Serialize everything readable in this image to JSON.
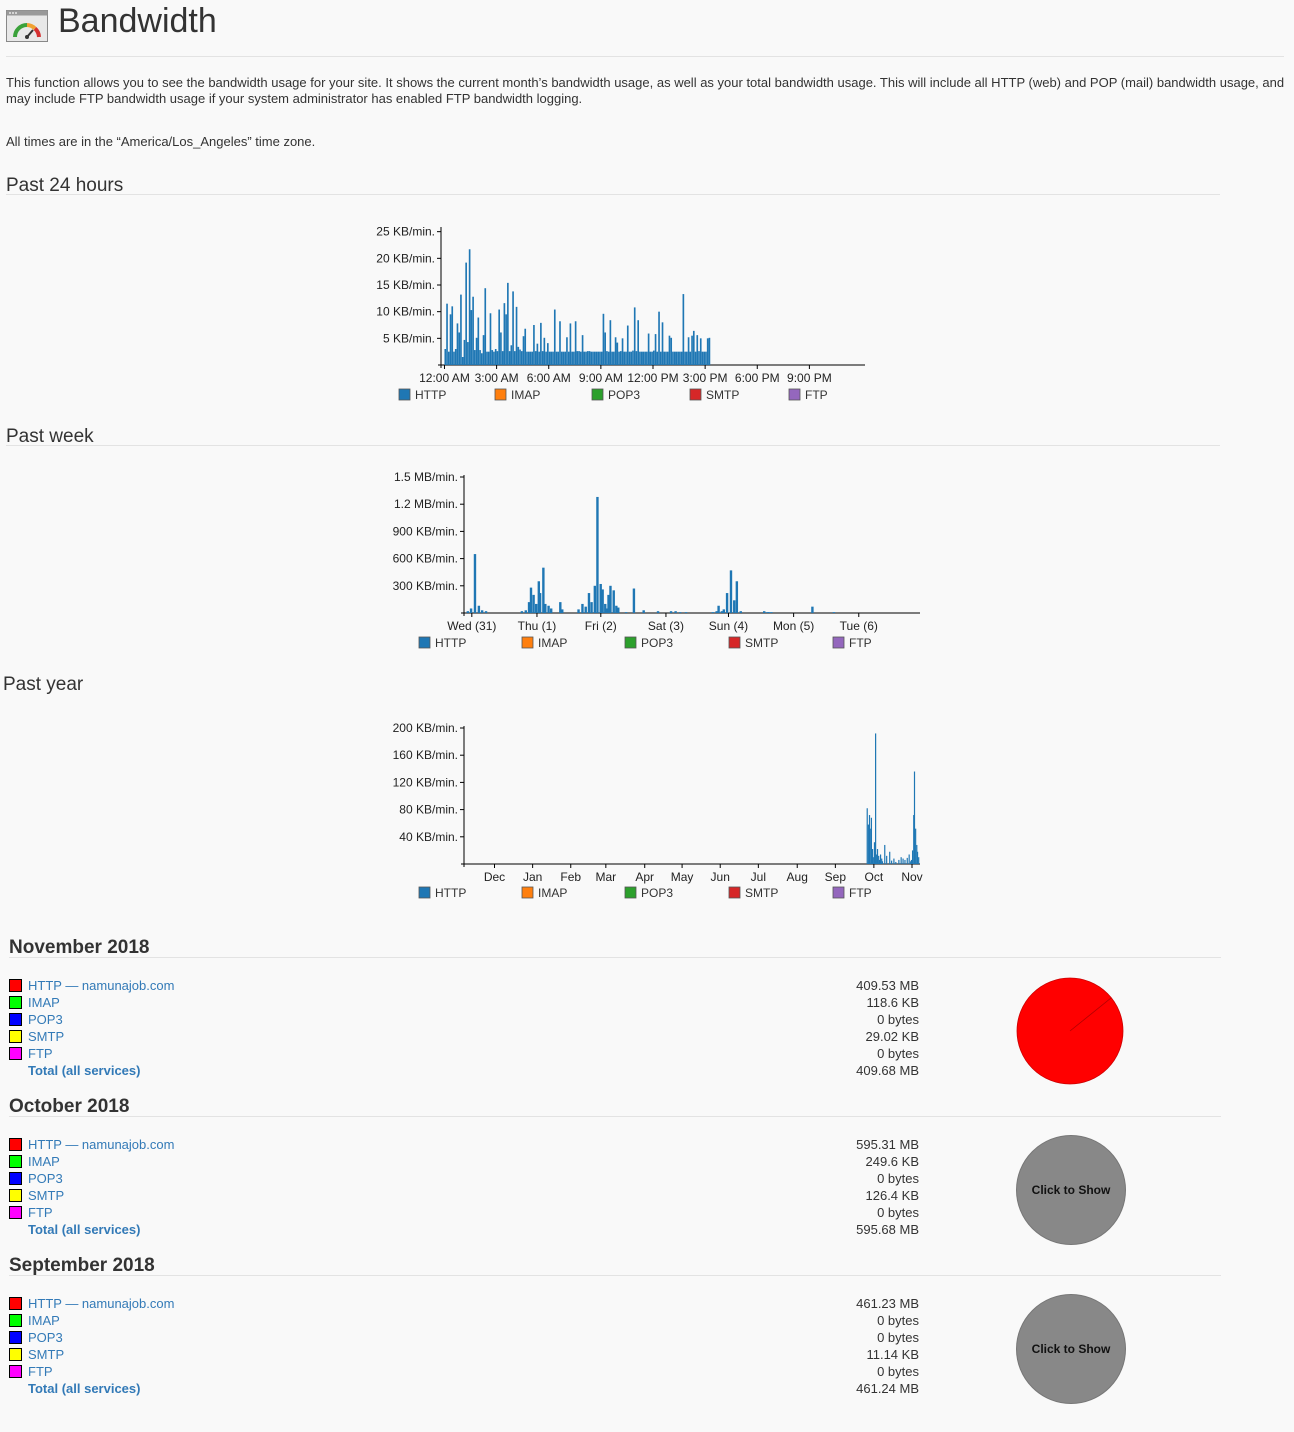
{
  "header": {
    "title": "Bandwidth",
    "description": "This function allows you to see the bandwidth usage for your site. It shows the current month’s bandwidth usage, as well as your total bandwidth usage. This will include all HTTP (web) and POP (mail) bandwidth usage, and may include FTP bandwidth usage if your system administrator has enabled FTP bandwidth logging.",
    "tz_prefix": "All times are in the “",
    "tz_name": "America/Los_Angeles",
    "tz_suffix": "” time zone."
  },
  "legend_colors": {
    "HTTP": "#1f77b4",
    "IMAP": "#ff7f0e",
    "POP3": "#2ca02c",
    "SMTP": "#d62728",
    "FTP": "#9467bd"
  },
  "sections": {
    "day": {
      "title": "Past 24 hours"
    },
    "week": {
      "title": "Past week"
    },
    "year": {
      "title": "Past year"
    }
  },
  "chart_data": [
    {
      "id": "day",
      "type": "bar",
      "title": "Past 24 hours",
      "ylabel": "",
      "xlabel": "",
      "ylim": [
        0,
        25.5
      ],
      "ytick_values": [
        5,
        10,
        15,
        20,
        25
      ],
      "ytick_labels": [
        "5 KB/min.",
        "10 KB/min.",
        "15 KB/min.",
        "20 KB/min.",
        "25 KB/min."
      ],
      "xlim": [
        -0.2,
        24.2
      ],
      "xtick_values": [
        0,
        3,
        6,
        9,
        12,
        15,
        18,
        21
      ],
      "xtick_labels": [
        "12:00 AM",
        "3:00 AM",
        "6:00 AM",
        "9:00 AM",
        "12:00 PM",
        "3:00 PM",
        "6:00 PM",
        "9:00 PM"
      ],
      "legend": [
        "HTTP",
        "IMAP",
        "POP3",
        "SMTP",
        "FTP"
      ],
      "series": [
        {
          "name": "HTTP",
          "x": [
            0.0,
            0.1,
            0.2,
            0.3,
            0.4,
            0.5,
            0.6,
            0.7,
            0.8,
            0.9,
            1.0,
            1.1,
            1.2,
            1.3,
            1.4,
            1.5,
            1.6,
            1.7,
            1.8,
            1.9,
            2.0,
            2.1,
            2.2,
            2.3,
            2.4,
            2.5,
            2.6,
            2.7,
            2.8,
            2.9,
            3.0,
            3.1,
            3.2,
            3.3,
            3.4,
            3.5,
            3.6,
            3.7,
            3.8,
            3.9,
            4.0,
            4.1,
            4.2,
            4.3,
            4.4,
            4.5,
            4.6,
            4.7,
            4.8,
            4.9,
            5.0,
            5.1,
            5.2,
            5.3,
            5.4,
            5.5,
            5.6,
            5.7,
            5.8,
            5.9,
            6.0,
            6.1,
            6.2,
            6.3,
            6.4,
            6.5,
            6.6,
            6.7,
            6.8,
            6.9,
            7.0,
            7.1,
            7.2,
            7.3,
            7.4,
            7.5,
            7.6,
            7.7,
            7.8,
            7.9,
            8.0,
            8.1,
            8.2,
            8.3,
            8.4,
            8.5,
            8.6,
            8.7,
            8.8,
            8.9,
            9.0,
            9.1,
            9.2,
            9.3,
            9.4,
            9.5,
            9.6,
            9.7,
            9.8,
            9.9,
            10.0,
            10.1,
            10.2,
            10.3,
            10.4,
            10.5,
            10.6,
            10.7,
            10.8,
            10.9,
            11.0,
            11.1,
            11.2,
            11.3,
            11.4,
            11.5,
            11.6,
            11.7,
            11.8,
            11.9,
            12.0,
            12.1,
            12.2,
            12.3,
            12.4,
            12.5,
            12.6,
            12.7,
            12.8,
            12.9,
            13.0,
            13.1,
            13.2,
            13.3,
            13.4,
            13.5,
            13.6,
            13.7,
            13.8,
            13.9,
            14.0,
            14.1,
            14.2,
            14.3,
            14.4,
            14.5,
            14.6,
            14.7,
            14.8,
            14.9,
            15.0,
            15.1,
            15.2
          ],
          "values": [
            3.0,
            11.5,
            2.5,
            9.5,
            11.0,
            2.5,
            3.0,
            7.8,
            6.1,
            13.2,
            1.5,
            4.7,
            19.2,
            4.3,
            21.7,
            10.3,
            12.8,
            2.8,
            5.1,
            8.9,
            2.8,
            2.2,
            5.6,
            14.4,
            2.5,
            2.5,
            9.7,
            2.8,
            2.5,
            3.0,
            2.6,
            10.4,
            6.1,
            2.6,
            11.6,
            9.5,
            15.4,
            2.6,
            3.7,
            13.8,
            2.6,
            10.9,
            3.4,
            2.9,
            2.6,
            5.4,
            6.8,
            2.5,
            2.5,
            2.5,
            2.5,
            7.5,
            2.6,
            4.0,
            2.5,
            7.9,
            2.6,
            5.1,
            2.5,
            4.1,
            2.5,
            2.5,
            2.5,
            10.4,
            2.5,
            2.5,
            8.2,
            2.5,
            2.5,
            2.5,
            5.2,
            2.5,
            7.8,
            2.5,
            2.5,
            8.2,
            2.6,
            2.6,
            2.5,
            5.6,
            2.5,
            2.5,
            2.6,
            2.6,
            2.5,
            2.5,
            2.5,
            2.5,
            2.5,
            2.5,
            2.5,
            9.6,
            6.1,
            2.6,
            2.5,
            8.4,
            2.5,
            2.5,
            5.2,
            4.2,
            2.5,
            2.6,
            5.0,
            2.5,
            2.5,
            7.4,
            2.5,
            2.5,
            2.7,
            10.8,
            2.6,
            8.4,
            2.5,
            2.5,
            2.5,
            2.5,
            2.5,
            5.9,
            2.5,
            2.5,
            2.7,
            5.8,
            2.5,
            10.0,
            2.5,
            8.0,
            2.5,
            2.5,
            2.5,
            5.5,
            5.1,
            2.5,
            2.5,
            2.5,
            2.5,
            2.5,
            2.5,
            13.3,
            2.5,
            2.5,
            5.2,
            2.5,
            5.5,
            6.4,
            2.5,
            5.6,
            2.6,
            5.0,
            2.5,
            2.5,
            2.5,
            5.0,
            5.1
          ]
        }
      ]
    },
    {
      "id": "week",
      "type": "bar",
      "title": "Past week",
      "ylabel": "",
      "xlabel": "",
      "ylim": [
        0,
        1.5
      ],
      "ytick_values": [
        0.3,
        0.6,
        0.9,
        1.2,
        1.5
      ],
      "ytick_labels": [
        "300 KB/min.",
        "600 KB/min.",
        "900 KB/min.",
        "1.2 MB/min.",
        "1.5 MB/min."
      ],
      "xlim": [
        -0.1,
        6.9
      ],
      "xtick_values": [
        0.02,
        1.02,
        2.0,
        3.0,
        3.96,
        4.96,
        5.96
      ],
      "xtick_labels": [
        "Wed (31)",
        "Thu (1)",
        "Fri (2)",
        "Sat (3)",
        "Sun (4)",
        "Mon (5)",
        "Tue (6)"
      ],
      "legend": [
        "HTTP",
        "IMAP",
        "POP3",
        "SMTP",
        "FTP"
      ],
      "series": [
        {
          "name": "HTTP",
          "x": [
            -0.06,
            -0.01,
            0.05,
            0.11,
            0.16,
            0.22,
            0.77,
            0.83,
            0.88,
            0.91,
            0.95,
            0.99,
            1.03,
            1.05,
            1.1,
            1.13,
            1.18,
            1.22,
            1.36,
            1.39,
            1.64,
            1.7,
            1.75,
            1.8,
            1.84,
            1.89,
            1.93,
            1.98,
            2.01,
            2.05,
            2.08,
            2.1,
            2.13,
            2.18,
            2.22,
            2.25,
            2.37,
            2.49,
            2.64,
            2.86,
            3.06,
            3.13,
            3.2,
            3.29,
            3.7,
            3.76,
            3.79,
            3.84,
            3.87,
            3.92,
            3.98,
            4.03,
            4.07,
            4.13,
            4.49,
            4.54,
            4.56,
            4.6,
            5.23,
            5.56
          ],
          "values": [
            0.02,
            0.05,
            0.65,
            0.08,
            0.03,
            0.02,
            0.02,
            0.03,
            0.12,
            0.28,
            0.2,
            0.1,
            0.35,
            0.22,
            0.5,
            0.1,
            0.08,
            0.05,
            0.12,
            0.04,
            0.04,
            0.1,
            0.07,
            0.22,
            0.12,
            0.3,
            1.28,
            0.32,
            0.26,
            0.1,
            0.05,
            0.2,
            0.3,
            0.25,
            0.08,
            0.06,
            0.01,
            0.27,
            0.03,
            0.02,
            0.02,
            0.02,
            0.01,
            0.01,
            0.01,
            0.02,
            0.08,
            0.02,
            0.04,
            0.22,
            0.47,
            0.14,
            0.35,
            0.02,
            0.02,
            0.01,
            0.01,
            0.01,
            0.07,
            0.01
          ]
        }
      ]
    },
    {
      "id": "year",
      "type": "bar",
      "title": "Past year",
      "ylabel": "",
      "xlabel": "",
      "ylim": [
        0,
        200
      ],
      "ytick_values": [
        40,
        80,
        120,
        160,
        200
      ],
      "ytick_labels": [
        "40 KB/min.",
        "80 KB/min.",
        "120 KB/min.",
        "160 KB/min.",
        "200 KB/min."
      ],
      "xlim": [
        0,
        11.96
      ],
      "xtick_values": [
        0.8,
        1.8,
        2.8,
        3.72,
        4.74,
        5.72,
        6.72,
        7.72,
        8.74,
        9.74,
        10.75,
        11.75
      ],
      "xtick_labels": [
        "Dec",
        "Jan",
        "Feb",
        "Mar",
        "Apr",
        "May",
        "Jun",
        "Jul",
        "Aug",
        "Sep",
        "Oct",
        "Nov"
      ],
      "legend": [
        "HTTP",
        "IMAP",
        "POP3",
        "SMTP",
        "FTP"
      ],
      "series": [
        {
          "name": "HTTP",
          "x": [
            10.56,
            10.59,
            10.62,
            10.64,
            10.67,
            10.7,
            10.72,
            10.75,
            10.78,
            10.8,
            10.83,
            10.86,
            10.88,
            10.91,
            10.94,
            10.96,
            11.02,
            11.07,
            11.15,
            11.2,
            11.26,
            11.31,
            11.39,
            11.45,
            11.5,
            11.55,
            11.61,
            11.66,
            11.7,
            11.72,
            11.75,
            11.78,
            11.8,
            11.83,
            11.86,
            11.88,
            11.91
          ],
          "values": [
            82,
            58,
            72,
            52,
            68,
            22,
            10,
            32,
            192,
            14,
            22,
            12,
            6,
            14,
            8,
            4,
            28,
            12,
            18,
            5,
            8,
            3,
            6,
            10,
            8,
            6,
            9,
            14,
            4,
            6,
            20,
            72,
            136,
            52,
            28,
            18,
            10
          ]
        }
      ]
    }
  ],
  "months": [
    {
      "title": "November 2018",
      "rows": [
        {
          "label": "HTTP — namunajob.com",
          "value": "409.53 MB",
          "color": "#ff0000"
        },
        {
          "label": "IMAP",
          "value": "118.6 KB",
          "color": "#00ff00"
        },
        {
          "label": "POP3",
          "value": "0 bytes",
          "color": "#0000ff"
        },
        {
          "label": "SMTP",
          "value": "29.02 KB",
          "color": "#ffff00"
        },
        {
          "label": "FTP",
          "value": "0 bytes",
          "color": "#ff00ff"
        }
      ],
      "total_label": "Total (all services)",
      "total_value": "409.68 MB",
      "pie": {
        "shown": true,
        "color": "#ff0000"
      }
    },
    {
      "title": "October 2018",
      "rows": [
        {
          "label": "HTTP — namunajob.com",
          "value": "595.31 MB",
          "color": "#ff0000"
        },
        {
          "label": "IMAP",
          "value": "249.6 KB",
          "color": "#00ff00"
        },
        {
          "label": "POP3",
          "value": "0 bytes",
          "color": "#0000ff"
        },
        {
          "label": "SMTP",
          "value": "126.4 KB",
          "color": "#ffff00"
        },
        {
          "label": "FTP",
          "value": "0 bytes",
          "color": "#ff00ff"
        }
      ],
      "total_label": "Total (all services)",
      "total_value": "595.68 MB",
      "pie": {
        "shown": false,
        "label": "Click to Show",
        "color": "#888888"
      }
    },
    {
      "title": "September 2018",
      "rows": [
        {
          "label": "HTTP — namunajob.com",
          "value": "461.23 MB",
          "color": "#ff0000"
        },
        {
          "label": "IMAP",
          "value": "0 bytes",
          "color": "#00ff00"
        },
        {
          "label": "POP3",
          "value": "0 bytes",
          "color": "#0000ff"
        },
        {
          "label": "SMTP",
          "value": "11.14 KB",
          "color": "#ffff00"
        },
        {
          "label": "FTP",
          "value": "0 bytes",
          "color": "#ff00ff"
        }
      ],
      "total_label": "Total (all services)",
      "total_value": "461.24 MB",
      "pie": {
        "shown": false,
        "label": "Click to Show",
        "color": "#888888"
      }
    }
  ]
}
